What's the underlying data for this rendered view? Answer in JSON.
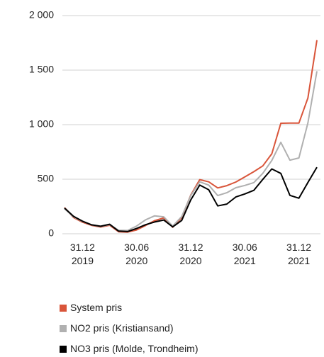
{
  "chart_data": {
    "type": "line",
    "categories": [
      null,
      null,
      "31.12\n2019",
      null,
      null,
      null,
      null,
      null,
      "30.06\n2020",
      null,
      null,
      null,
      null,
      null,
      "31.12\n2020",
      null,
      null,
      null,
      null,
      null,
      "30.06\n2021",
      null,
      null,
      null,
      null,
      null,
      "31.12\n2021",
      null,
      null
    ],
    "series": [
      {
        "name": "System pris",
        "color": "#d9553a",
        "values": [
          240,
          149,
          106,
          77,
          62,
          78,
          18,
          15,
          35,
          76,
          120,
          145,
          60,
          148,
          354,
          496,
          476,
          420,
          441,
          474,
          521,
          569,
          622,
          733,
          1013,
          1015,
          1014,
          1245,
          1775
        ]
      },
      {
        "name": "NO2 pris (Kristiansand)",
        "color": "#b0b0b0",
        "values": [
          230,
          155,
          113,
          82,
          67,
          84,
          32,
          30,
          71,
          128,
          164,
          155,
          70,
          158,
          349,
          476,
          446,
          350,
          376,
          422,
          443,
          469,
          554,
          672,
          838,
          675,
          695,
          1016,
          1490
        ]
      },
      {
        "name": "NO3 pris (Molde, Trondheim)",
        "color": "#000000",
        "values": [
          235,
          160,
          115,
          82,
          69,
          87,
          24,
          20,
          49,
          83,
          108,
          126,
          63,
          122,
          309,
          446,
          403,
          255,
          272,
          337,
          365,
          398,
          499,
          594,
          553,
          352,
          326,
          470,
          610
        ]
      }
    ],
    "ylim": [
      0,
      2000
    ],
    "yticks": [
      0,
      500,
      {
        "value": 1000,
        "label": "1 000"
      },
      {
        "value": 1500,
        "label": "1 500"
      },
      {
        "value": 2000,
        "label": "2 000"
      }
    ],
    "grid": true
  }
}
